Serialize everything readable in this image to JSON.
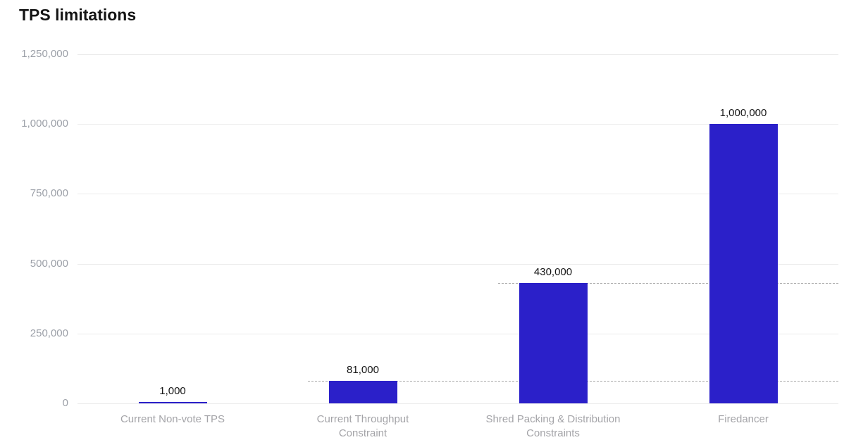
{
  "colors": {
    "bar": "#2b20c9",
    "gridline": "#ececec",
    "reference_line": "#a9a9a9",
    "axis_label": "#9ca0a8",
    "category_label": "#a4a4a8",
    "data_label": "#151515",
    "title": "#141414",
    "background": "#ffffff"
  },
  "chart_data": {
    "type": "bar",
    "title": "TPS limitations",
    "xlabel": "",
    "ylabel": "",
    "categories": [
      "Current Non-vote TPS",
      "Current Throughput Constraint",
      "Shred Packing & Distribution Constraints",
      "Firedancer"
    ],
    "category_display": [
      "Current Non-vote TPS",
      "Current Throughput\nConstraint",
      "Shred Packing & Distribution\nConstraints",
      "Firedancer"
    ],
    "values": [
      1000,
      81000,
      430000,
      1000000
    ],
    "value_labels": [
      "1,000",
      "81,000",
      "430,000",
      "1,000,000"
    ],
    "ylim": [
      0,
      1250000
    ],
    "yticks": [
      0,
      250000,
      500000,
      750000,
      1000000,
      1250000
    ],
    "ytick_labels": [
      "0",
      "250,000",
      "500,000",
      "750,000",
      "1,000,000",
      "1,250,000"
    ],
    "grid": true,
    "legend": "none",
    "reference_lines": [
      {
        "value": 81000,
        "value_label": "81,000",
        "category_index": 1
      },
      {
        "value": 430000,
        "value_label": "430,000",
        "category_index": 2
      }
    ]
  }
}
